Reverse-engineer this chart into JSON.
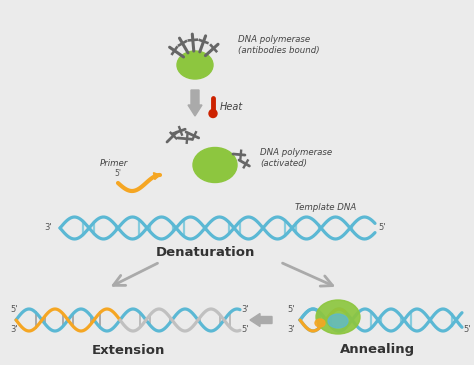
{
  "bg_color": "#ebebeb",
  "blue_dna": "#5bb8d4",
  "orange_strand": "#f5a623",
  "gray_strand": "#c0c0c0",
  "green_enzyme": "#8dc63f",
  "dark_gray": "#666666",
  "arrow_color": "#aaaaaa",
  "red_therm": "#cc2200",
  "label_denaturation": "Denaturation",
  "label_extension": "Extension",
  "label_annealing": "Annealing",
  "label_heat": "Heat",
  "label_primer": "Primer",
  "label_template": "Template DNA",
  "label_polym_bound": "DNA polymerase\n(antibodies bound)",
  "label_polym_active": "DNA polymerase\n(activated)"
}
